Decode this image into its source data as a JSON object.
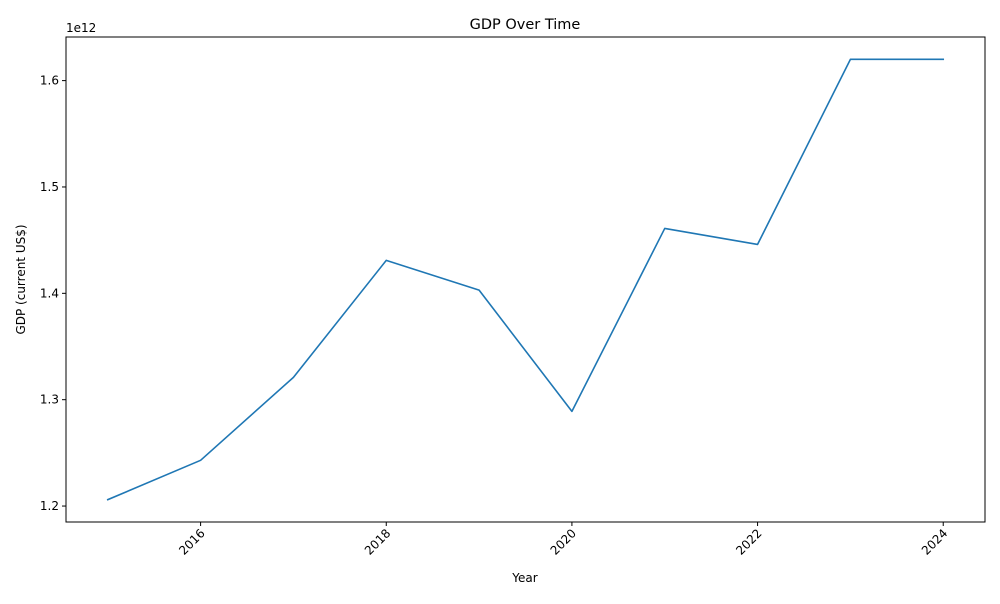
{
  "chart_data": {
    "type": "line",
    "title": "GDP Over Time",
    "xlabel": "Year",
    "ylabel": "GDP (current US$)",
    "y_offset_label": "1e12",
    "x": [
      2015,
      2016,
      2017,
      2018,
      2019,
      2020,
      2021,
      2022,
      2023,
      2024
    ],
    "series": [
      {
        "values": [
          1206000000000.0,
          1243000000000.0,
          1321000000000.0,
          1431000000000.0,
          1403000000000.0,
          1289000000000.0,
          1461000000000.0,
          1446000000000.0,
          1620000000000.0,
          1620000000000.0
        ],
        "color": "#1f77b4"
      }
    ],
    "xlim": [
      2014.55,
      2024.45
    ],
    "ylim": [
      1185000000000.0,
      1641000000000.0
    ],
    "x_ticks": [
      2016,
      2018,
      2020,
      2022,
      2024
    ],
    "x_tick_labels": [
      "2016",
      "2018",
      "2020",
      "2022",
      "2024"
    ],
    "y_ticks": [
      1200000000000.0,
      1300000000000.0,
      1400000000000.0,
      1500000000000.0,
      1600000000000.0
    ],
    "y_tick_labels": [
      "1.2",
      "1.3",
      "1.4",
      "1.5",
      "1.6"
    ],
    "grid": false,
    "legend": "none"
  }
}
